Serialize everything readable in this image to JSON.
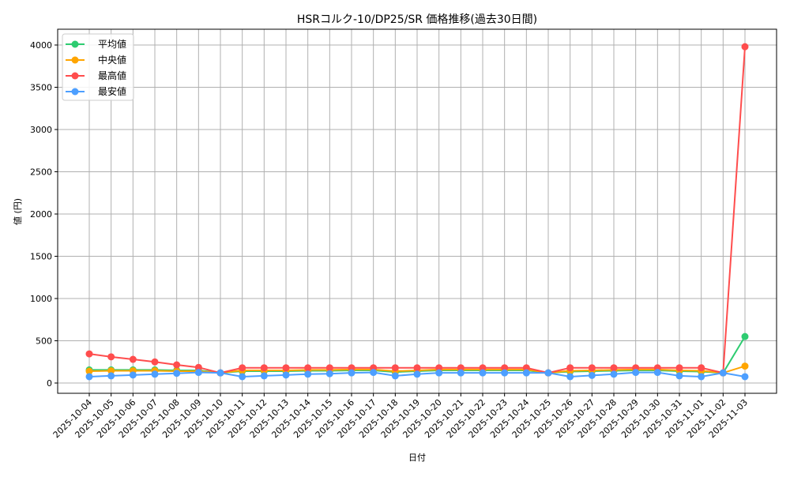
{
  "chart_data": {
    "type": "line",
    "title": "HSRコルク-10/DP25/SR 価格推移(過去30日間)",
    "xlabel": "日付",
    "ylabel": "値 (円)",
    "ylim": [
      -120,
      4180
    ],
    "yticks": [
      0,
      500,
      1000,
      1500,
      2000,
      2500,
      3000,
      3500,
      4000
    ],
    "grid": true,
    "legend_position": "upper left",
    "categories": [
      "2025-10-04",
      "2025-10-05",
      "2025-10-06",
      "2025-10-07",
      "2025-10-08",
      "2025-10-09",
      "2025-10-10",
      "2025-10-11",
      "2025-10-12",
      "2025-10-13",
      "2025-10-14",
      "2025-10-15",
      "2025-10-16",
      "2025-10-17",
      "2025-10-18",
      "2025-10-19",
      "2025-10-20",
      "2025-10-21",
      "2025-10-22",
      "2025-10-23",
      "2025-10-24",
      "2025-10-25",
      "2025-10-26",
      "2025-10-27",
      "2025-10-28",
      "2025-10-29",
      "2025-10-30",
      "2025-10-31",
      "2025-11-01",
      "2025-11-02",
      "2025-11-03"
    ],
    "series": [
      {
        "name": "平均値",
        "color": "#2ecc71",
        "values": [
          155,
          155,
          155,
          155,
          150,
          150,
          120,
          140,
          140,
          140,
          145,
          145,
          150,
          150,
          130,
          140,
          150,
          150,
          150,
          150,
          150,
          120,
          135,
          140,
          145,
          150,
          150,
          140,
          135,
          120,
          550
        ]
      },
      {
        "name": "中央値",
        "color": "#ffa500",
        "values": [
          140,
          145,
          145,
          145,
          140,
          140,
          120,
          150,
          150,
          150,
          155,
          155,
          160,
          160,
          140,
          150,
          160,
          160,
          160,
          160,
          160,
          120,
          145,
          150,
          155,
          160,
          160,
          150,
          145,
          120,
          200
        ]
      },
      {
        "name": "最高値",
        "color": "#ff4d4d",
        "values": [
          345,
          310,
          280,
          250,
          215,
          185,
          120,
          180,
          180,
          180,
          180,
          180,
          180,
          180,
          180,
          180,
          180,
          180,
          180,
          180,
          180,
          120,
          180,
          180,
          180,
          180,
          180,
          180,
          180,
          120,
          3980
        ]
      },
      {
        "name": "最安値",
        "color": "#4d9fff",
        "values": [
          75,
          85,
          95,
          105,
          115,
          125,
          120,
          75,
          85,
          95,
          105,
          110,
          120,
          125,
          85,
          105,
          120,
          120,
          120,
          120,
          120,
          120,
          75,
          90,
          105,
          125,
          125,
          85,
          75,
          120,
          75
        ]
      }
    ]
  }
}
